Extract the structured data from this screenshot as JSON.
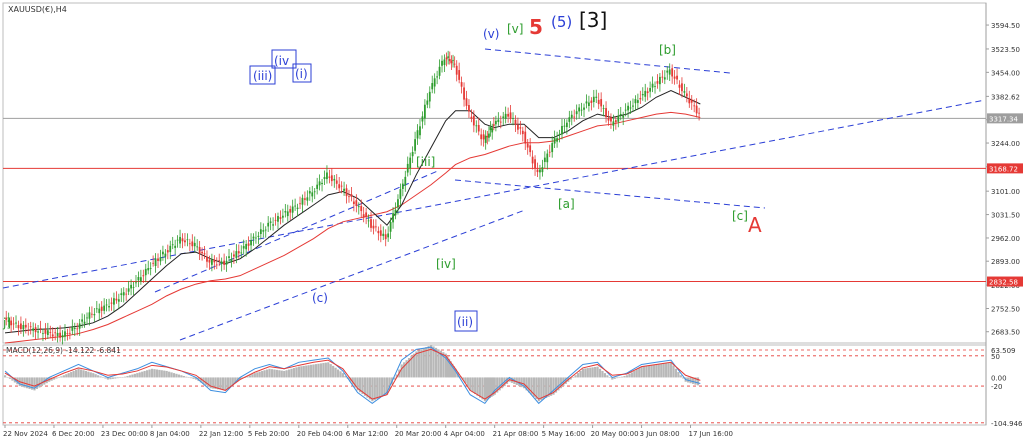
{
  "chart_data": {
    "type": "line",
    "title": "XAUUSD(€),H4",
    "price_axis": {
      "ylim": [
        2650,
        3660
      ],
      "ticks": [
        "3594.50",
        "3523.50",
        "3454.00",
        "3382.62",
        "3313.12",
        "3244.00",
        "3173.50",
        "3101.00",
        "3031.50",
        "2962.00",
        "2893.00",
        "2822.00",
        "2752.50",
        "2683.50"
      ],
      "tick_values": [
        3594.5,
        3523.5,
        3454.0,
        3382.62,
        3313.12,
        3244.0,
        3173.5,
        3101.0,
        3031.5,
        2962.0,
        2893.0,
        2822.0,
        2752.5,
        2683.5
      ]
    },
    "x_ticks": [
      "22 Nov 2024",
      "6 Dec 20:00",
      "23 Dec 00:00",
      "8 Jan 04:00",
      "22 Jan 12:00",
      "5 Feb 20:00",
      "20 Feb 04:00",
      "6 Mar 12:00",
      "20 Mar 20:00",
      "4 Apr 04:00",
      "21 Apr 08:00",
      "5 May 16:00",
      "20 May 00:00",
      "3 Jun 08:00",
      "17 Jun 16:00"
    ],
    "x_range": [
      0,
      14.5
    ],
    "price_series": {
      "name": "XAUUSD",
      "x": [
        0,
        0.3,
        0.6,
        0.9,
        1.2,
        1.5,
        1.8,
        2.1,
        2.4,
        2.7,
        3.0,
        3.3,
        3.6,
        3.9,
        4.2,
        4.5,
        4.8,
        5.1,
        5.4,
        5.7,
        6.0,
        6.3,
        6.6,
        6.9,
        7.2,
        7.5,
        7.8,
        8.1,
        8.4,
        8.7,
        9.0,
        9.2,
        9.5,
        9.8,
        10.0,
        10.3,
        10.6,
        10.9,
        11.2,
        11.5,
        11.8,
        12.1,
        12.4,
        12.7,
        13.0,
        13.3,
        13.6,
        13.9,
        14.2
      ],
      "values": [
        2720,
        2700,
        2690,
        2680,
        2672,
        2700,
        2740,
        2760,
        2790,
        2830,
        2880,
        2920,
        2960,
        2940,
        2890,
        2890,
        2920,
        2960,
        3000,
        3030,
        3060,
        3100,
        3150,
        3110,
        3060,
        3000,
        2960,
        3100,
        3250,
        3400,
        3500,
        3480,
        3330,
        3250,
        3300,
        3330,
        3270,
        3150,
        3240,
        3310,
        3350,
        3380,
        3300,
        3340,
        3380,
        3420,
        3460,
        3390,
        3330
      ]
    },
    "ma_black": {
      "values": [
        2680,
        2685,
        2690,
        2692,
        2695,
        2700,
        2710,
        2730,
        2760,
        2800,
        2840,
        2880,
        2915,
        2920,
        2900,
        2885,
        2900,
        2930,
        2965,
        3000,
        3030,
        3060,
        3090,
        3100,
        3080,
        3040,
        3000,
        3060,
        3150,
        3230,
        3310,
        3340,
        3340,
        3300,
        3290,
        3300,
        3300,
        3260,
        3260,
        3280,
        3310,
        3330,
        3320,
        3330,
        3350,
        3380,
        3400,
        3380,
        3360
      ]
    },
    "ma_red": {
      "values": [
        2650,
        2655,
        2660,
        2665,
        2670,
        2678,
        2690,
        2705,
        2725,
        2745,
        2765,
        2790,
        2810,
        2825,
        2835,
        2840,
        2850,
        2870,
        2890,
        2910,
        2935,
        2960,
        2990,
        3010,
        3020,
        3030,
        3040,
        3060,
        3090,
        3120,
        3155,
        3180,
        3200,
        3210,
        3220,
        3235,
        3245,
        3245,
        3250,
        3265,
        3280,
        3295,
        3300,
        3310,
        3320,
        3330,
        3335,
        3330,
        3320
      ]
    },
    "horizontal_levels": [
      {
        "value": 3317.34,
        "label": "3317.34",
        "color": "#9e9e9e"
      },
      {
        "value": 3168.72,
        "label": "3168.72",
        "color": "#e53935"
      },
      {
        "value": 2832.58,
        "label": "2832.58",
        "color": "#e53935"
      }
    ],
    "trendlines_color": "#2b3fd6",
    "wave_labels": [
      {
        "text": "(v)",
        "color": "#2b3fd6"
      },
      {
        "text": "[v]",
        "color": "#2e9d2e"
      },
      {
        "text": "5",
        "color": "#e53935"
      },
      {
        "text": "(5)",
        "color": "#2b3fd6"
      },
      {
        "text": "[3]",
        "color": "#111111"
      },
      {
        "text": "[b]",
        "color": "#2e9d2e"
      },
      {
        "text": "(iii)",
        "color": "#2b3fd6"
      },
      {
        "text": "(iv",
        "color": "#2b3fd6"
      },
      {
        "text": "(i)",
        "color": "#2b3fd6"
      },
      {
        "text": "[iii]",
        "color": "#2e9d2e"
      },
      {
        "text": "[a]",
        "color": "#2e9d2e"
      },
      {
        "text": "[c]",
        "color": "#2e9d2e"
      },
      {
        "text": "A",
        "color": "#e53935"
      },
      {
        "text": "[iv]",
        "color": "#2e9d2e"
      },
      {
        "text": "(c)",
        "color": "#2b3fd6"
      },
      {
        "text": "(ii)",
        "color": "#2b3fd6"
      },
      {
        "text": "j]",
        "color": "#2e9d2e"
      }
    ],
    "macd": {
      "title": "MACD(12,26,9) -14.122 -6.841",
      "ylim": [
        -110,
        75
      ],
      "ticks": [
        "63.509",
        "50",
        "0.00",
        "-20",
        "-104.946"
      ],
      "tick_values": [
        63.509,
        50,
        0,
        -20,
        -104.946
      ],
      "histogram": [
        5,
        -20,
        -30,
        -10,
        5,
        20,
        10,
        -5,
        0,
        10,
        20,
        15,
        5,
        -5,
        -25,
        -30,
        -5,
        10,
        20,
        15,
        25,
        30,
        35,
        10,
        -30,
        -55,
        -40,
        30,
        60,
        75,
        55,
        20,
        -30,
        -55,
        -40,
        -10,
        -25,
        -55,
        -40,
        -10,
        20,
        25,
        -5,
        5,
        25,
        30,
        35,
        -10,
        -20
      ],
      "macd_line": [
        15,
        -15,
        -25,
        0,
        15,
        30,
        15,
        0,
        10,
        20,
        35,
        25,
        15,
        0,
        -30,
        -35,
        0,
        20,
        30,
        20,
        35,
        40,
        45,
        15,
        -35,
        -60,
        -35,
        40,
        65,
        70,
        45,
        15,
        -40,
        -60,
        -30,
        0,
        -20,
        -60,
        -30,
        0,
        30,
        35,
        0,
        10,
        30,
        35,
        40,
        -5,
        -14.122
      ],
      "signal_line": [
        10,
        -10,
        -20,
        -5,
        10,
        22,
        15,
        5,
        8,
        15,
        28,
        24,
        15,
        5,
        -20,
        -30,
        -5,
        12,
        25,
        20,
        28,
        35,
        40,
        20,
        -25,
        -50,
        -40,
        20,
        55,
        65,
        50,
        20,
        -30,
        -50,
        -35,
        -5,
        -15,
        -50,
        -35,
        -5,
        22,
        30,
        5,
        8,
        25,
        30,
        35,
        5,
        -6.841
      ],
      "levels": [
        50,
        -20
      ]
    }
  }
}
